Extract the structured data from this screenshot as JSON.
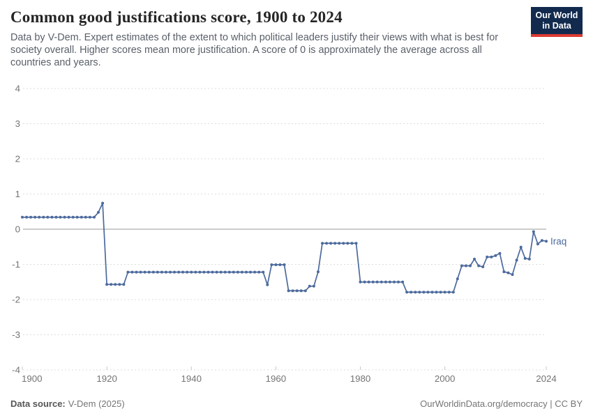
{
  "header": {
    "title": "Common good justifications score, 1900 to 2024",
    "subtitle_lines": [
      "Data by V-Dem. Expert estimates of the extent to which political leaders justify their views with what is best for",
      "society overall. Higher scores mean more justification. A score of 0 is approximately the average across all",
      "countries and years."
    ],
    "logo": {
      "line1": "Our World",
      "line2": "in Data"
    }
  },
  "colors": {
    "line": "#4C6A9C",
    "logo_bg": "#122A4E",
    "logo_stripe": "#DC3A32",
    "grid": "#dcdcdc",
    "zero_line": "#989898",
    "axis_text": "#737373"
  },
  "chart_data": {
    "type": "line",
    "title": "Common good justifications score, 1900 to 2024",
    "xlabel": "",
    "ylabel": "",
    "xlim": [
      1900,
      2024
    ],
    "ylim": [
      -4,
      4
    ],
    "x_ticks": [
      1900,
      1920,
      1940,
      1960,
      1980,
      2000,
      2024
    ],
    "y_ticks": [
      4,
      3,
      2,
      1,
      0,
      -1,
      -2,
      -3,
      -4
    ],
    "grid": "horizontal-dashed",
    "zero_line": true,
    "markers": true,
    "legend_position": "end-of-line-label",
    "series": [
      {
        "name": "Iraq",
        "color": "#4C6A9C",
        "x": [
          1900,
          1901,
          1902,
          1903,
          1904,
          1905,
          1906,
          1907,
          1908,
          1909,
          1910,
          1911,
          1912,
          1913,
          1914,
          1915,
          1916,
          1917,
          1918,
          1919,
          1920,
          1921,
          1922,
          1923,
          1924,
          1925,
          1926,
          1927,
          1928,
          1929,
          1930,
          1931,
          1932,
          1933,
          1934,
          1935,
          1936,
          1937,
          1938,
          1939,
          1940,
          1941,
          1942,
          1943,
          1944,
          1945,
          1946,
          1947,
          1948,
          1949,
          1950,
          1951,
          1952,
          1953,
          1954,
          1955,
          1956,
          1957,
          1958,
          1959,
          1960,
          1961,
          1962,
          1963,
          1964,
          1965,
          1966,
          1967,
          1968,
          1969,
          1970,
          1971,
          1972,
          1973,
          1974,
          1975,
          1976,
          1977,
          1978,
          1979,
          1980,
          1981,
          1982,
          1983,
          1984,
          1985,
          1986,
          1987,
          1988,
          1989,
          1990,
          1991,
          1992,
          1993,
          1994,
          1995,
          1996,
          1997,
          1998,
          1999,
          2000,
          2001,
          2002,
          2003,
          2004,
          2005,
          2006,
          2007,
          2008,
          2009,
          2010,
          2011,
          2012,
          2013,
          2014,
          2015,
          2016,
          2017,
          2018,
          2019,
          2020,
          2021,
          2022,
          2023,
          2024
        ],
        "values": [
          0.34,
          0.34,
          0.34,
          0.34,
          0.34,
          0.34,
          0.34,
          0.34,
          0.34,
          0.34,
          0.34,
          0.34,
          0.34,
          0.34,
          0.34,
          0.34,
          0.34,
          0.34,
          0.48,
          0.74,
          -1.57,
          -1.57,
          -1.57,
          -1.57,
          -1.57,
          -1.22,
          -1.22,
          -1.22,
          -1.22,
          -1.22,
          -1.22,
          -1.22,
          -1.22,
          -1.22,
          -1.22,
          -1.22,
          -1.22,
          -1.22,
          -1.22,
          -1.22,
          -1.22,
          -1.22,
          -1.22,
          -1.22,
          -1.22,
          -1.22,
          -1.22,
          -1.22,
          -1.22,
          -1.22,
          -1.22,
          -1.22,
          -1.22,
          -1.22,
          -1.22,
          -1.22,
          -1.22,
          -1.22,
          -1.58,
          -1.01,
          -1.01,
          -1.01,
          -1.01,
          -1.75,
          -1.75,
          -1.75,
          -1.75,
          -1.75,
          -1.62,
          -1.62,
          -1.21,
          -0.4,
          -0.4,
          -0.4,
          -0.4,
          -0.4,
          -0.4,
          -0.4,
          -0.4,
          -0.4,
          -1.5,
          -1.5,
          -1.5,
          -1.5,
          -1.5,
          -1.5,
          -1.5,
          -1.5,
          -1.5,
          -1.5,
          -1.5,
          -1.79,
          -1.79,
          -1.79,
          -1.79,
          -1.79,
          -1.79,
          -1.79,
          -1.79,
          -1.79,
          -1.79,
          -1.79,
          -1.79,
          -1.41,
          -1.04,
          -1.04,
          -1.04,
          -0.85,
          -1.04,
          -1.07,
          -0.79,
          -0.79,
          -0.75,
          -0.69,
          -1.21,
          -1.24,
          -1.29,
          -0.88,
          -0.51,
          -0.83,
          -0.85,
          -0.07,
          -0.42,
          -0.32,
          -0.34
        ]
      }
    ]
  },
  "footer": {
    "source_label": "Data source:",
    "source_value": "V-Dem (2025)",
    "credit": "OurWorldinData.org/democracy | CC BY"
  }
}
